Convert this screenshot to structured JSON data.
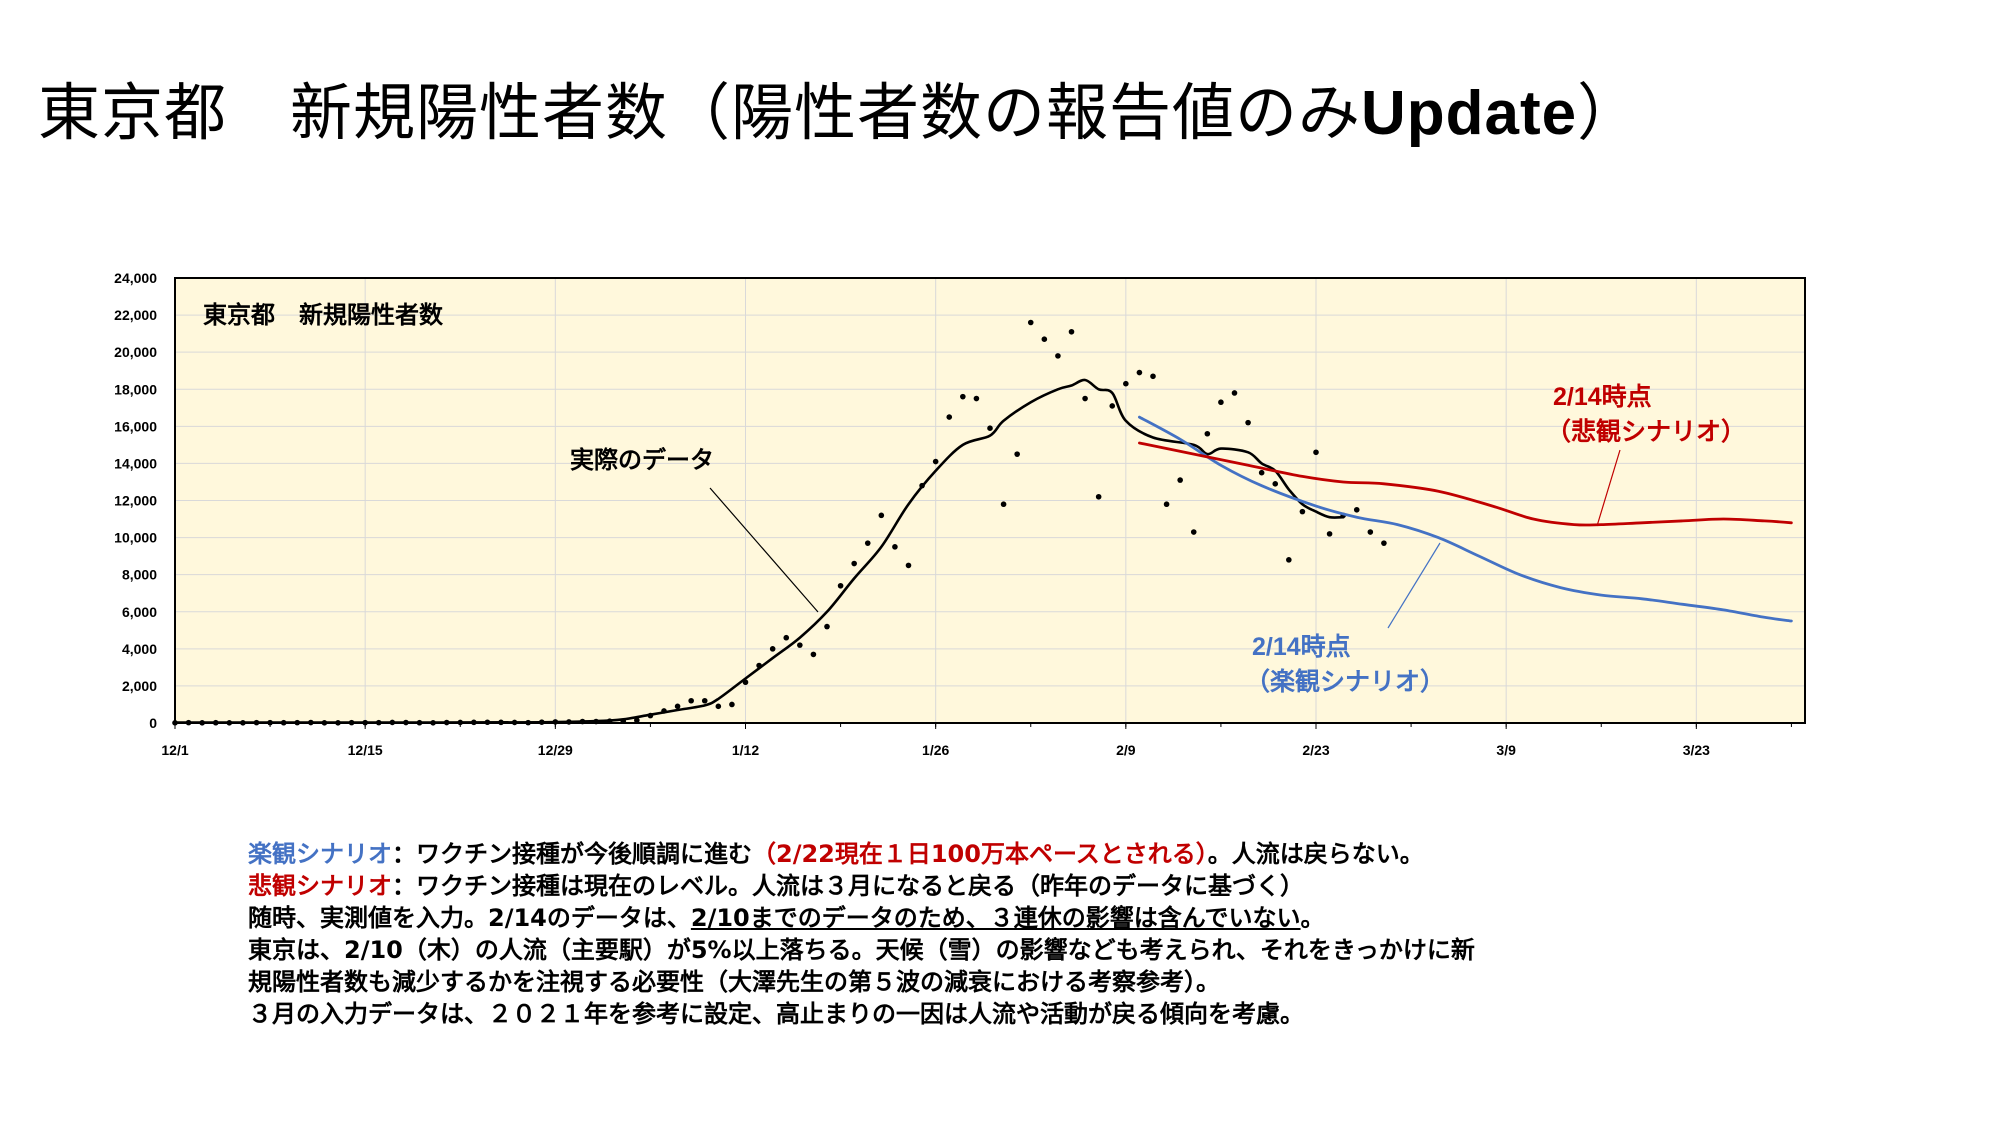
{
  "slide": {
    "title_main": "東京都　新規陽性者数（陽性者数の報告値のみ",
    "title_latin": "Update",
    "title_close": "）"
  },
  "colors": {
    "plot_background": "#FFF8DC",
    "actual": "#000000",
    "optimistic": "#4472C4",
    "pessimistic": "#C00000"
  },
  "chart_data": {
    "type": "line",
    "title": "東京都　新規陽性者数",
    "x_type": "date",
    "y_tick_labels": [
      "0",
      "2,000",
      "4,000",
      "6,000",
      "8,000",
      "10,000",
      "12,000",
      "14,000",
      "16,000",
      "18,000",
      "20,000",
      "22,000",
      "24,000"
    ],
    "ylim": [
      0,
      24000
    ],
    "xlim": [
      "2021-12-01",
      "2022-03-31"
    ],
    "x_ticks": [
      {
        "date": "2021-12-01",
        "label": "12/1"
      },
      {
        "date": "2021-12-15",
        "label": "12/15"
      },
      {
        "date": "2021-12-29",
        "label": "12/29"
      },
      {
        "date": "2022-01-12",
        "label": "1/12"
      },
      {
        "date": "2022-01-26",
        "label": "1/26"
      },
      {
        "date": "2022-02-09",
        "label": "2/9"
      },
      {
        "date": "2022-02-23",
        "label": "2/23"
      },
      {
        "date": "2022-03-09",
        "label": "3/9"
      },
      {
        "date": "2022-03-23",
        "label": "3/23"
      }
    ],
    "grid": true,
    "series": [
      {
        "name": "実際のデータ",
        "style": "points",
        "color": "#000000",
        "points": [
          [
            "2021-12-01",
            10
          ],
          [
            "2021-12-02",
            20
          ],
          [
            "2021-12-03",
            10
          ],
          [
            "2021-12-04",
            15
          ],
          [
            "2021-12-05",
            10
          ],
          [
            "2021-12-06",
            10
          ],
          [
            "2021-12-07",
            20
          ],
          [
            "2021-12-08",
            20
          ],
          [
            "2021-12-09",
            15
          ],
          [
            "2021-12-10",
            20
          ],
          [
            "2021-12-11",
            25
          ],
          [
            "2021-12-12",
            10
          ],
          [
            "2021-12-13",
            10
          ],
          [
            "2021-12-14",
            20
          ],
          [
            "2021-12-15",
            20
          ],
          [
            "2021-12-16",
            20
          ],
          [
            "2021-12-17",
            30
          ],
          [
            "2021-12-18",
            25
          ],
          [
            "2021-12-19",
            15
          ],
          [
            "2021-12-20",
            10
          ],
          [
            "2021-12-21",
            25
          ],
          [
            "2021-12-22",
            30
          ],
          [
            "2021-12-23",
            35
          ],
          [
            "2021-12-24",
            40
          ],
          [
            "2021-12-25",
            35
          ],
          [
            "2021-12-26",
            30
          ],
          [
            "2021-12-27",
            20
          ],
          [
            "2021-12-28",
            45
          ],
          [
            "2021-12-29",
            60
          ],
          [
            "2021-12-30",
            60
          ],
          [
            "2021-12-31",
            80
          ],
          [
            "2022-01-01",
            80
          ],
          [
            "2022-01-02",
            100
          ],
          [
            "2022-01-03",
            100
          ],
          [
            "2022-01-04",
            150
          ],
          [
            "2022-01-05",
            400
          ],
          [
            "2022-01-06",
            650
          ],
          [
            "2022-01-07",
            900
          ],
          [
            "2022-01-08",
            1200
          ],
          [
            "2022-01-09",
            1200
          ],
          [
            "2022-01-10",
            900
          ],
          [
            "2022-01-11",
            1000
          ],
          [
            "2022-01-12",
            2200
          ],
          [
            "2022-01-13",
            3100
          ],
          [
            "2022-01-14",
            4000
          ],
          [
            "2022-01-15",
            4600
          ],
          [
            "2022-01-16",
            4200
          ],
          [
            "2022-01-17",
            3700
          ],
          [
            "2022-01-18",
            5200
          ],
          [
            "2022-01-19",
            7400
          ],
          [
            "2022-01-20",
            8600
          ],
          [
            "2022-01-21",
            9700
          ],
          [
            "2022-01-22",
            11200
          ],
          [
            "2022-01-23",
            9500
          ],
          [
            "2022-01-24",
            8500
          ],
          [
            "2022-01-25",
            12800
          ],
          [
            "2022-01-26",
            14100
          ],
          [
            "2022-01-27",
            16500
          ],
          [
            "2022-01-28",
            17600
          ],
          [
            "2022-01-29",
            17500
          ],
          [
            "2022-01-30",
            15900
          ],
          [
            "2022-01-31",
            11800
          ],
          [
            "2022-02-01",
            14500
          ],
          [
            "2022-02-02",
            21600
          ],
          [
            "2022-02-03",
            20700
          ],
          [
            "2022-02-04",
            19800
          ],
          [
            "2022-02-05",
            21100
          ],
          [
            "2022-02-06",
            17500
          ],
          [
            "2022-02-07",
            12200
          ],
          [
            "2022-02-08",
            17100
          ],
          [
            "2022-02-09",
            18300
          ],
          [
            "2022-02-10",
            18900
          ],
          [
            "2022-02-11",
            18700
          ],
          [
            "2022-02-12",
            11800
          ],
          [
            "2022-02-13",
            13100
          ],
          [
            "2022-02-14",
            10300
          ],
          [
            "2022-02-15",
            15600
          ],
          [
            "2022-02-16",
            17300
          ],
          [
            "2022-02-17",
            17800
          ],
          [
            "2022-02-18",
            16200
          ],
          [
            "2022-02-19",
            13500
          ],
          [
            "2022-02-20",
            12900
          ],
          [
            "2022-02-21",
            8800
          ],
          [
            "2022-02-22",
            11400
          ],
          [
            "2022-02-23",
            14600
          ],
          [
            "2022-02-24",
            10200
          ],
          [
            "2022-02-25",
            11200
          ],
          [
            "2022-02-26",
            11500
          ],
          [
            "2022-02-27",
            10300
          ],
          [
            "2022-02-28",
            9700
          ]
        ]
      },
      {
        "name": "実際のデータ",
        "style": "smooth_line",
        "color": "#000000",
        "points": [
          [
            "2021-12-01",
            20
          ],
          [
            "2021-12-10",
            20
          ],
          [
            "2021-12-20",
            25
          ],
          [
            "2021-12-28",
            40
          ],
          [
            "2022-01-01",
            100
          ],
          [
            "2022-01-03",
            200
          ],
          [
            "2022-01-05",
            450
          ],
          [
            "2022-01-07",
            700
          ],
          [
            "2022-01-09",
            950
          ],
          [
            "2022-01-10",
            1300
          ],
          [
            "2022-01-12",
            2400
          ],
          [
            "2022-01-14",
            3500
          ],
          [
            "2022-01-16",
            4600
          ],
          [
            "2022-01-18",
            6000
          ],
          [
            "2022-01-20",
            7800
          ],
          [
            "2022-01-22",
            9500
          ],
          [
            "2022-01-24",
            11800
          ],
          [
            "2022-01-26",
            13600
          ],
          [
            "2022-01-28",
            15000
          ],
          [
            "2022-01-30",
            15500
          ],
          [
            "2022-01-31",
            16300
          ],
          [
            "2022-02-02",
            17300
          ],
          [
            "2022-02-04",
            18000
          ],
          [
            "2022-02-05",
            18200
          ],
          [
            "2022-02-06",
            18500
          ],
          [
            "2022-02-07",
            18000
          ],
          [
            "2022-02-08",
            17800
          ],
          [
            "2022-02-09",
            16300
          ],
          [
            "2022-02-11",
            15400
          ],
          [
            "2022-02-14",
            15000
          ],
          [
            "2022-02-15",
            14500
          ],
          [
            "2022-02-16",
            14800
          ],
          [
            "2022-02-18",
            14600
          ],
          [
            "2022-02-19",
            14000
          ],
          [
            "2022-02-20",
            13600
          ],
          [
            "2022-02-21",
            12600
          ],
          [
            "2022-02-22",
            11800
          ],
          [
            "2022-02-23",
            11400
          ],
          [
            "2022-02-24",
            11100
          ],
          [
            "2022-02-25",
            11100
          ]
        ]
      },
      {
        "name": "2/14時点（楽観シナリオ）",
        "style": "line",
        "color": "#4472C4",
        "points": [
          [
            "2022-02-10",
            16500
          ],
          [
            "2022-02-13",
            15300
          ],
          [
            "2022-02-16",
            13900
          ],
          [
            "2022-02-19",
            12800
          ],
          [
            "2022-02-23",
            11700
          ],
          [
            "2022-02-26",
            11100
          ],
          [
            "2022-03-01",
            10700
          ],
          [
            "2022-03-04",
            10000
          ],
          [
            "2022-03-07",
            9000
          ],
          [
            "2022-03-10",
            8000
          ],
          [
            "2022-03-13",
            7300
          ],
          [
            "2022-03-16",
            6900
          ],
          [
            "2022-03-19",
            6700
          ],
          [
            "2022-03-22",
            6400
          ],
          [
            "2022-03-25",
            6100
          ],
          [
            "2022-03-28",
            5700
          ],
          [
            "2022-03-30",
            5500
          ]
        ]
      },
      {
        "name": "2/14時点（悲観シナリオ）",
        "style": "line",
        "color": "#C00000",
        "points": [
          [
            "2022-02-10",
            15100
          ],
          [
            "2022-02-14",
            14500
          ],
          [
            "2022-02-18",
            13900
          ],
          [
            "2022-02-22",
            13300
          ],
          [
            "2022-02-25",
            13000
          ],
          [
            "2022-02-28",
            12900
          ],
          [
            "2022-03-04",
            12500
          ],
          [
            "2022-03-08",
            11700
          ],
          [
            "2022-03-11",
            11000
          ],
          [
            "2022-03-14",
            10700
          ],
          [
            "2022-03-16",
            10700
          ],
          [
            "2022-03-19",
            10800
          ],
          [
            "2022-03-22",
            10900
          ],
          [
            "2022-03-25",
            11000
          ],
          [
            "2022-03-28",
            10900
          ],
          [
            "2022-03-30",
            10800
          ]
        ]
      }
    ],
    "annotations": [
      {
        "text": "実際のデータ",
        "color": "#000000"
      },
      {
        "text": "2/14時点",
        "text2": "（悲観シナリオ）",
        "color": "#C00000"
      },
      {
        "text": "2/14時点",
        "text2": "（楽観シナリオ）",
        "color": "#4472C4"
      }
    ]
  },
  "notes": {
    "line1": {
      "label": "楽観シナリオ",
      "sep": "：",
      "text": "ワクチン接種が今後順調に進む",
      "red": "（2/22現在１日100万本ペースとされる）",
      "tail": "。人流は戻らない。"
    },
    "line2": {
      "label": "悲観シナリオ",
      "sep": "：",
      "text": "ワクチン接種は現在のレベル。人流は３月になると戻る（昨年のデータに基づく）"
    },
    "line3": {
      "a": "随時、実測値を入力。2/14のデータは、",
      "u": "2/10までのデータのため、３連休の影響は含んでいない",
      "b": "。"
    },
    "line4": "東京は、2/10（木）の人流（主要駅）が5%以上落ちる。天候（雪）の影響なども考えられ、それをきっかけに新",
    "line5": "規陽性者数も減少するかを注視する必要性（大澤先生の第５波の減衰における考察参考）。",
    "line6": "３月の入力データは、２０２１年を参考に設定、高止まりの一因は人流や活動が戻る傾向を考慮。"
  }
}
